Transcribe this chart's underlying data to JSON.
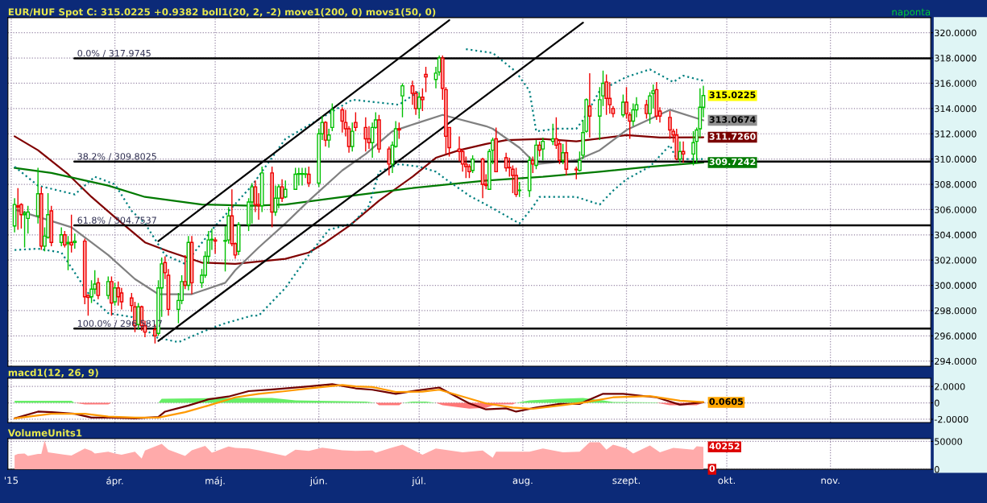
{
  "chart_data": [
    {
      "type": "candlestick",
      "title": "EUR/HUF Spot C: 315.0225 +0.9382 boll1(20, 2, -2) move1(200, 0) movs1(50, 0)",
      "subtitle": "naponta",
      "x": [
        "2015-03-02",
        "2015-03-03",
        "2015-03-04",
        "2015-03-05",
        "2015-03-06",
        "2015-03-09",
        "2015-03-10",
        "2015-03-11",
        "2015-03-12",
        "2015-03-13",
        "2015-03-16",
        "2015-03-17",
        "2015-03-18",
        "2015-03-19",
        "2015-03-20",
        "2015-03-23",
        "2015-03-24",
        "2015-03-25",
        "2015-03-26",
        "2015-03-27",
        "2015-03-30",
        "2015-03-31",
        "2015-04-01",
        "2015-04-02",
        "2015-04-03",
        "2015-04-06",
        "2015-04-07",
        "2015-04-08",
        "2015-04-09",
        "2015-04-10",
        "2015-04-13",
        "2015-04-14",
        "2015-04-15",
        "2015-04-16",
        "2015-04-17",
        "2015-04-20",
        "2015-04-21",
        "2015-04-22",
        "2015-04-23",
        "2015-04-24",
        "2015-04-27",
        "2015-04-28",
        "2015-04-29",
        "2015-04-30",
        "2015-05-01",
        "2015-05-04",
        "2015-05-05",
        "2015-05-06",
        "2015-05-07",
        "2015-05-08",
        "2015-05-11",
        "2015-05-12",
        "2015-05-13",
        "2015-05-14",
        "2015-05-15",
        "2015-05-18",
        "2015-05-19",
        "2015-05-20",
        "2015-05-21",
        "2015-05-22",
        "2015-05-25",
        "2015-05-26",
        "2015-05-27",
        "2015-05-28",
        "2015-05-29",
        "2015-06-01",
        "2015-06-02",
        "2015-06-03",
        "2015-06-04",
        "2015-06-05",
        "2015-06-08",
        "2015-06-09",
        "2015-06-10",
        "2015-06-11",
        "2015-06-12",
        "2015-06-15",
        "2015-06-16",
        "2015-06-17",
        "2015-06-18",
        "2015-06-19",
        "2015-06-22",
        "2015-06-23",
        "2015-06-24",
        "2015-06-25",
        "2015-06-26",
        "2015-06-29",
        "2015-06-30",
        "2015-07-01",
        "2015-07-02",
        "2015-07-03",
        "2015-07-06",
        "2015-07-07",
        "2015-07-08",
        "2015-07-09",
        "2015-07-10",
        "2015-07-13",
        "2015-07-14",
        "2015-07-15",
        "2015-07-16",
        "2015-07-17",
        "2015-07-20",
        "2015-07-21",
        "2015-07-22",
        "2015-07-23",
        "2015-07-24",
        "2015-07-27",
        "2015-07-28",
        "2015-07-29",
        "2015-07-30",
        "2015-07-31",
        "2015-08-03",
        "2015-08-04",
        "2015-08-05",
        "2015-08-06",
        "2015-08-07",
        "2015-08-10",
        "2015-08-11",
        "2015-08-12",
        "2015-08-13",
        "2015-08-14",
        "2015-08-17",
        "2015-08-18",
        "2015-08-19",
        "2015-08-20",
        "2015-08-21",
        "2015-08-24",
        "2015-08-25",
        "2015-08-26",
        "2015-08-27",
        "2015-08-28",
        "2015-08-31",
        "2015-09-01",
        "2015-09-02",
        "2015-09-03",
        "2015-09-04",
        "2015-09-07",
        "2015-09-08",
        "2015-09-09",
        "2015-09-10",
        "2015-09-11",
        "2015-09-14",
        "2015-09-15",
        "2015-09-16",
        "2015-09-17",
        "2015-09-18",
        "2015-09-21",
        "2015-09-22",
        "2015-09-23",
        "2015-09-24"
      ],
      "ohlc": [
        [
          304.7,
          306.9,
          304.2,
          306.4
        ],
        [
          306.3,
          307.7,
          304.4,
          306.2
        ],
        [
          306.4,
          306.5,
          304.5,
          305.6
        ],
        [
          305.6,
          305.9,
          303.0,
          305.7
        ],
        [
          305.3,
          306.3,
          304.1,
          305.8
        ],
        [
          305.5,
          309.3,
          304.9,
          307.25
        ],
        [
          307.25,
          307.8,
          302.8,
          303.1
        ],
        [
          303.1,
          304.6,
          302.7,
          303.9
        ],
        [
          303.8,
          307.3,
          303.7,
          305.6
        ],
        [
          305.9,
          306.3,
          303.1,
          303.4
        ],
        [
          303.4,
          304.6,
          303.1,
          304.0
        ],
        [
          304.0,
          304.3,
          303.0,
          303.2
        ],
        [
          303.3,
          303.9,
          301.2,
          303.4
        ],
        [
          303.4,
          305.6,
          302.6,
          303.2
        ],
        [
          303.4,
          304.1,
          302.9,
          303.5
        ],
        [
          303.5,
          303.7,
          298.5,
          299.1
        ],
        [
          299.2,
          299.3,
          297.6,
          299.05
        ],
        [
          299.1,
          300.4,
          298.6,
          299.7
        ],
        [
          299.7,
          301.2,
          299.3,
          300.1
        ],
        [
          300.2,
          300.6,
          298.9,
          299.2
        ],
        [
          299.2,
          300.7,
          298.9,
          300.3
        ],
        [
          300.3,
          300.7,
          297.6,
          298.6
        ],
        [
          298.7,
          300.2,
          298.4,
          299.8
        ],
        [
          299.8,
          300.3,
          298.4,
          299.1
        ],
        [
          299.4,
          299.8,
          298.1,
          298.7
        ],
        [
          299.0,
          299.4,
          297.9,
          298.4
        ],
        [
          298.3,
          298.7,
          296.3,
          296.8
        ],
        [
          296.9,
          298.6,
          296.5,
          298.3
        ],
        [
          298.3,
          298.4,
          296.4,
          296.8
        ],
        [
          296.8,
          297.2,
          295.9,
          296.3
        ],
        [
          296.5,
          296.9,
          295.4,
          296.0
        ],
        [
          296.2,
          300.4,
          296.0,
          299.8
        ],
        [
          299.8,
          302.2,
          297.5,
          301.7
        ],
        [
          301.8,
          302.3,
          300.5,
          301.0
        ],
        [
          300.8,
          301.3,
          297.6,
          298.1
        ],
        [
          298.1,
          299.4,
          297.0,
          298.8
        ],
        [
          298.8,
          300.8,
          298.5,
          300.3
        ],
        [
          300.3,
          302.4,
          299.7,
          300.0
        ],
        [
          300.0,
          303.9,
          299.6,
          303.4
        ],
        [
          303.4,
          303.9,
          299.3,
          300.2
        ],
        [
          300.2,
          301.3,
          299.8,
          300.8
        ],
        [
          300.8,
          302.7,
          300.6,
          302.3
        ],
        [
          302.3,
          304.3,
          301.7,
          303.6
        ],
        [
          303.6,
          304.5,
          302.8,
          303.65
        ],
        [
          303.6,
          303.8,
          302.5,
          303.5
        ],
        [
          303.5,
          304.7,
          301.1,
          303.55
        ],
        [
          303.6,
          306.2,
          303.3,
          305.5
        ],
        [
          305.5,
          307.6,
          303.1,
          303.3
        ],
        [
          303.3,
          303.4,
          302.1,
          302.4
        ],
        [
          302.7,
          305.0,
          302.4,
          304.8
        ],
        [
          304.8,
          306.9,
          304.3,
          306.6
        ],
        [
          306.6,
          308.1,
          304.9,
          307.8
        ],
        [
          307.8,
          308.3,
          305.8,
          306.4
        ],
        [
          306.4,
          307.3,
          305.2,
          306.3
        ],
        [
          306.3,
          309.4,
          305.8,
          308.9
        ],
        [
          308.9,
          309.4,
          304.6,
          305.8
        ],
        [
          305.8,
          307.9,
          305.5,
          306.9
        ],
        [
          306.9,
          308.0,
          306.1,
          307.8
        ],
        [
          307.8,
          308.4,
          306.6,
          306.9
        ],
        [
          307.0,
          308.3,
          306.9,
          307.6
        ],
        [
          307.6,
          309.3,
          307.6,
          308.8
        ],
        [
          308.8,
          309.3,
          307.9,
          308.85
        ],
        [
          308.8,
          309.3,
          307.9,
          308.85
        ],
        [
          308.8,
          309.3,
          308.5,
          308.8
        ],
        [
          308.8,
          309.4,
          307.8,
          308.1
        ],
        [
          308.1,
          312.4,
          307.8,
          312.0
        ],
        [
          312.0,
          313.4,
          311.5,
          312.9
        ],
        [
          312.9,
          313.0,
          311.0,
          311.5
        ],
        [
          311.5,
          312.4,
          310.9,
          311.9
        ],
        [
          312.5,
          314.4,
          312.2,
          313.9
        ],
        [
          313.9,
          314.1,
          312.1,
          313.0
        ],
        [
          312.9,
          313.9,
          311.8,
          312.4
        ],
        [
          312.4,
          312.6,
          310.5,
          311.0
        ],
        [
          311.0,
          312.9,
          310.6,
          312.2
        ],
        [
          312.9,
          313.7,
          312.2,
          312.5
        ],
        [
          312.5,
          313.3,
          310.6,
          311.6
        ],
        [
          311.6,
          312.6,
          310.8,
          311.3
        ],
        [
          311.3,
          312.9,
          310.1,
          312.5
        ],
        [
          312.5,
          313.7,
          312.4,
          313.1
        ],
        [
          313.1,
          313.5,
          310.5,
          310.8
        ],
        [
          310.8,
          311.0,
          308.7,
          309.6
        ],
        [
          309.6,
          311.4,
          308.9,
          311.1
        ],
        [
          311.0,
          313.0,
          310.9,
          312.4
        ],
        [
          312.4,
          312.9,
          311.6,
          312.3
        ],
        [
          315.0,
          316.0,
          313.3,
          315.8
        ],
        [
          315.8,
          316.2,
          314.3,
          315.2
        ],
        [
          315.2,
          315.4,
          313.5,
          314.0
        ],
        [
          314.0,
          315.3,
          313.2,
          314.9
        ],
        [
          314.9,
          315.6,
          313.8,
          314.7
        ],
        [
          316.7,
          317.3,
          315.3,
          316.5
        ],
        [
          316.3,
          317.3,
          315.6,
          316.8
        ],
        [
          316.9,
          318.2,
          316.6,
          318.0
        ],
        [
          318.0,
          318.2,
          314.7,
          315.6
        ],
        [
          315.5,
          315.7,
          310.4,
          311.8
        ],
        [
          312.5,
          312.5,
          310.2,
          310.9
        ],
        [
          310.8,
          311.8,
          309.8,
          310.6
        ],
        [
          310.6,
          310.8,
          309.0,
          309.6
        ],
        [
          309.6,
          310.2,
          308.5,
          309.4
        ],
        [
          309.4,
          309.6,
          308.5,
          309.0
        ],
        [
          309.1,
          310.3,
          308.9,
          310.0
        ],
        [
          310.0,
          310.1,
          306.9,
          308.0
        ],
        [
          308.0,
          308.8,
          307.6,
          307.9
        ],
        [
          307.6,
          310.8,
          307.6,
          310.6
        ],
        [
          310.7,
          311.7,
          309.6,
          311.5
        ],
        [
          311.6,
          312.5,
          309.0,
          309.0
        ],
        [
          310.1,
          310.5,
          309.0,
          309.3
        ],
        [
          309.35,
          310.1,
          308.6,
          309.3
        ],
        [
          309.2,
          309.5,
          307.3,
          308.7
        ],
        [
          308.7,
          309.3,
          307.0,
          307.2
        ],
        [
          307.5,
          308.2,
          307.0,
          307.55
        ],
        [
          307.5,
          310.2,
          307.0,
          309.9
        ],
        [
          309.9,
          310.2,
          308.9,
          309.6
        ],
        [
          309.5,
          311.5,
          309.2,
          311.1
        ],
        [
          311.1,
          311.4,
          310.2,
          310.7
        ],
        [
          310.8,
          311.7,
          309.9,
          311.4
        ],
        [
          311.4,
          312.8,
          311.1,
          311.6
        ],
        [
          311.6,
          313.3,
          310.8,
          311.1
        ],
        [
          311.2,
          311.5,
          309.6,
          309.9
        ],
        [
          309.9,
          311.2,
          309.6,
          310.5
        ],
        [
          310.5,
          311.4,
          308.7,
          309.2
        ],
        [
          309.2,
          309.4,
          308.4,
          309.15
        ],
        [
          309.1,
          310.6,
          309.0,
          309.9
        ],
        [
          310.3,
          313.1,
          310.0,
          312.1
        ],
        [
          312.2,
          314.8,
          312.1,
          314.7
        ],
        [
          314.2,
          316.8,
          311.7,
          313.4
        ],
        [
          313.4,
          315.7,
          311.5,
          314.7
        ],
        [
          315.0,
          317.0,
          314.2,
          316.0
        ],
        [
          316.1,
          316.7,
          313.5,
          314.8
        ],
        [
          314.8,
          316.1,
          313.6,
          314.3
        ],
        [
          314.0,
          314.2,
          313.3,
          313.6
        ],
        [
          313.5,
          315.1,
          313.3,
          314.5
        ],
        [
          314.5,
          315.7,
          313.2,
          313.6
        ],
        [
          313.5,
          313.7,
          311.6,
          313.0
        ],
        [
          313.0,
          314.4,
          312.6,
          313.9
        ],
        [
          313.9,
          314.9,
          313.3,
          314.3
        ],
        [
          314.3,
          314.7,
          313.2,
          313.6
        ],
        [
          313.6,
          315.3,
          312.8,
          315.0
        ],
        [
          315.2,
          315.9,
          314.0,
          315.4
        ],
        [
          315.5,
          316.1,
          313.1,
          313.4
        ],
        [
          313.8,
          314.1,
          312.9,
          313.4
        ],
        [
          313.3,
          313.8,
          311.6,
          312.3
        ],
        [
          312.2,
          312.4,
          311.3,
          311.9
        ],
        [
          311.9,
          312.4,
          309.9,
          310.0
        ],
        [
          310.0,
          311.4,
          309.7,
          310.6
        ],
        [
          310.6,
          311.4,
          309.7,
          310.4
        ],
        [
          310.4,
          312.2,
          309.5,
          311.3
        ],
        [
          311.4,
          312.5,
          309.7,
          312.3
        ],
        [
          312.4,
          315.6,
          311.7,
          314.1
        ],
        [
          314.1,
          315.8,
          313.3,
          315.0225
        ]
      ],
      "series": [
        {
          "type": "line",
          "color": "#800000",
          "line_style": "solid",
          "x": [
            "2015-03-02",
            "2015-03-09",
            "2015-03-18",
            "2015-03-25",
            "2015-04-01",
            "2015-04-10",
            "2015-04-17",
            "2015-04-27",
            "2015-05-07",
            "2015-05-22",
            "2015-05-29",
            "2015-06-03",
            "2015-06-10",
            "2015-06-19",
            "2015-06-29",
            "2015-07-06",
            "2015-07-13",
            "2015-07-21",
            "2015-07-27",
            "2015-08-07",
            "2015-08-17",
            "2015-09-01",
            "2015-09-11",
            "2015-09-24"
          ],
          "values": [
            311.8,
            310.7,
            308.8,
            307.0,
            305.4,
            303.4,
            302.7,
            301.8,
            301.7,
            302.1,
            302.6,
            303.4,
            304.7,
            306.7,
            308.6,
            310.1,
            310.7,
            311.2,
            311.5,
            311.6,
            311.4,
            311.9,
            311.7,
            311.726
          ]
        },
        {
          "type": "line",
          "color": "#007a00",
          "line_style": "solid",
          "x": [
            "2015-03-02",
            "2015-03-13",
            "2015-03-30",
            "2015-04-10",
            "2015-04-27",
            "2015-05-12",
            "2015-05-22",
            "2015-06-11",
            "2015-06-29",
            "2015-07-21",
            "2015-08-07",
            "2015-08-24",
            "2015-09-08",
            "2015-09-24"
          ],
          "values": [
            309.3,
            308.9,
            307.9,
            307.0,
            306.4,
            306.3,
            306.4,
            307.1,
            307.7,
            308.3,
            308.6,
            309.0,
            309.4,
            309.7242
          ]
        },
        {
          "type": "line",
          "color": "#808080",
          "line_style": "solid",
          "x": [
            "2015-03-02",
            "2015-03-19",
            "2015-03-30",
            "2015-04-07",
            "2015-04-14",
            "2015-04-24",
            "2015-05-04",
            "2015-05-07",
            "2015-05-14",
            "2015-05-22",
            "2015-05-29",
            "2015-06-08",
            "2015-06-15",
            "2015-06-23",
            "2015-07-01",
            "2015-07-08",
            "2015-07-21",
            "2015-07-23",
            "2015-07-31",
            "2015-08-05",
            "2015-08-17",
            "2015-08-24",
            "2015-09-01",
            "2015-09-14",
            "2015-09-24"
          ],
          "values": [
            306.0,
            304.6,
            302.4,
            300.5,
            299.3,
            299.3,
            300.2,
            301.2,
            303.0,
            304.9,
            306.7,
            309.1,
            310.4,
            312.2,
            312.9,
            313.5,
            312.6,
            312.4,
            310.9,
            309.6,
            309.9,
            310.7,
            312.3,
            313.9,
            313.0674
          ]
        },
        {
          "type": "line",
          "color": "#008080",
          "line_style": "dotted",
          "x": [
            "2015-03-02",
            "2015-03-09",
            "2015-03-20",
            "2015-03-26",
            "2015-04-01",
            "2015-04-06",
            "2015-04-10",
            "2015-04-16",
            "2015-04-22",
            "2015-05-01",
            "2015-05-12",
            "2015-05-22",
            "2015-06-02",
            "2015-06-11",
            "2015-06-25",
            "2015-07-01",
            "2015-07-08",
            "2015-07-15",
            "2015-07-23",
            "2015-07-30",
            "2015-08-03",
            "2015-08-05",
            "2015-08-11",
            "2015-08-17",
            "2015-08-19",
            "2015-08-24",
            "2015-09-01",
            "2015-09-08",
            "2015-09-15",
            "2015-09-18",
            "2015-09-24"
          ],
          "values": [
            309.4,
            307.9,
            307.2,
            308.6,
            308.0,
            305.9,
            304.9,
            302.4,
            301.7,
            304.7,
            307.9,
            311.6,
            313.3,
            314.7,
            314.3,
            315.4,
            null,
            318.7,
            318.4,
            316.9,
            315.4,
            312.2,
            312.4,
            312.4,
            313.1,
            315.4,
            316.5,
            317.1,
            316.1,
            316.6,
            316.2
          ]
        },
        {
          "type": "line",
          "color": "#008080",
          "line_style": "dotted",
          "x": [
            "2015-03-02",
            "2015-03-09",
            "2015-03-16",
            "2015-03-20",
            "2015-03-25",
            "2015-03-30",
            "2015-04-06",
            "2015-04-13",
            "2015-04-20",
            "2015-04-27",
            "2015-05-04",
            "2015-05-12",
            "2015-05-14",
            "2015-05-22",
            "2015-05-29",
            "2015-06-04",
            "2015-06-11",
            "2015-06-16",
            "2015-06-19",
            "2015-06-25",
            "2015-07-01",
            "2015-07-06",
            "2015-07-09",
            "2015-07-16",
            "2015-07-21",
            "2015-07-31",
            "2015-08-04",
            "2015-08-06",
            "2015-08-17",
            "2015-08-24",
            "2015-08-28",
            "2015-09-01",
            "2015-09-08",
            "2015-09-14",
            "2015-09-16",
            "2015-09-24"
          ],
          "values": [
            302.8,
            302.9,
            302.6,
            301.0,
            299.0,
            297.8,
            297.5,
            295.9,
            295.5,
            296.3,
            297.0,
            297.6,
            297.6,
            299.8,
            302.4,
            304.4,
            304.9,
            306.3,
            309.0,
            309.6,
            309.4,
            309.0,
            308.4,
            307.1,
            306.4,
            304.9,
            306.2,
            307.0,
            307.0,
            306.4,
            307.5,
            308.4,
            309.4,
            311.1,
            310.0,
            310.0
          ]
        },
        {
          "type": "line",
          "color": "#000000",
          "line_style": "solid",
          "x": [
            "2015-04-14",
            "2015-07-10"
          ],
          "values": [
            303.5,
            321.0
          ]
        },
        {
          "type": "line",
          "color": "#000000",
          "line_style": "solid",
          "x": [
            "2015-04-14",
            "2015-08-19"
          ],
          "values": [
            295.6,
            320.8
          ]
        }
      ],
      "ref_lines": [
        {
          "axis": "y",
          "value": 317.9745,
          "label": "0.0% / 317.9745",
          "color": "#000000"
        },
        {
          "axis": "y",
          "value": 309.8025,
          "label": "38.2% / 309.8025",
          "color": "#000000"
        },
        {
          "axis": "y",
          "value": 304.7537,
          "label": "61.8% / 304.7537",
          "color": "#000000"
        },
        {
          "axis": "y",
          "value": 296.5817,
          "label": "100.0% / 296.5817",
          "color": "#000000"
        }
      ],
      "annotations": [
        {
          "text": "315.0225",
          "x": "2015-09-24",
          "y": 315.0225
        },
        {
          "text": "313.0674",
          "x": "2015-09-24",
          "y": 313.0674
        },
        {
          "text": "311.7260",
          "x": "2015-09-24",
          "y": 311.726
        },
        {
          "text": "309.7242",
          "x": "2015-09-24",
          "y": 309.7242
        }
      ],
      "xlim": [
        "2015-02-28",
        "2015-12-01"
      ],
      "xticks": [
        {
          "value": "2015-03-01",
          "label": null
        },
        {
          "value": "2015-04-01",
          "label": null
        },
        {
          "value": "2015-05-01",
          "label": null
        },
        {
          "value": "2015-06-01",
          "label": null
        },
        {
          "value": "2015-07-01",
          "label": null
        },
        {
          "value": "2015-08-01",
          "label": null
        },
        {
          "value": "2015-09-01",
          "label": null
        },
        {
          "value": "2015-10-01",
          "label": null
        },
        {
          "value": "2015-11-01",
          "label": null
        }
      ],
      "ylim": [
        293.6,
        321.2
      ],
      "yticks": [
        {
          "value": 294,
          "label": "294.0000"
        },
        {
          "value": 296,
          "label": "296.0000"
        },
        {
          "value": 298,
          "label": "298.0000"
        },
        {
          "value": 300,
          "label": "300.0000"
        },
        {
          "value": 302,
          "label": "302.0000"
        },
        {
          "value": 304,
          "label": "304.0000"
        },
        {
          "value": 306,
          "label": "306.0000"
        },
        {
          "value": 308,
          "label": "308.0000"
        },
        {
          "value": 310,
          "label": "310.0000"
        },
        {
          "value": 312,
          "label": "312.0000"
        },
        {
          "value": 314,
          "label": "314.0000"
        },
        {
          "value": 316,
          "label": "316.0000"
        },
        {
          "value": 318,
          "label": "318.0000"
        },
        {
          "value": 320,
          "label": "320.0000"
        }
      ],
      "grid": true,
      "tick_labels": "y"
    },
    {
      "type": "line",
      "title": "macd1(12, 26, 9)",
      "xticks": [
        {
          "value": "2015-03-01",
          "label": null
        },
        {
          "value": "2015-04-01",
          "label": null
        },
        {
          "value": "2015-05-01",
          "label": null
        },
        {
          "value": "2015-06-01",
          "label": null
        },
        {
          "value": "2015-07-01",
          "label": null
        },
        {
          "value": "2015-08-01",
          "label": null
        },
        {
          "value": "2015-09-01",
          "label": null
        },
        {
          "value": "2015-10-01",
          "label": null
        },
        {
          "value": "2015-11-01",
          "label": null
        }
      ],
      "series": [
        {
          "type": "area",
          "color": "#66ee66",
          "x": [
            "2015-03-02",
            "2015-03-19",
            "2015-03-20",
            "2015-04-14",
            "2015-04-15",
            "2015-05-04",
            "2015-05-18",
            "2015-05-25",
            "2015-06-15",
            "2015-06-18",
            "2015-06-26",
            "2015-06-29",
            "2015-07-03",
            "2015-07-06",
            "2015-07-30",
            "2015-08-03",
            "2015-08-12",
            "2015-08-19",
            "2015-08-25",
            "2015-08-28",
            "2015-09-10",
            "2015-09-11",
            "2015-09-24"
          ],
          "values": [
            0.25,
            0.25,
            0,
            0,
            0.5,
            0.6,
            0.6,
            0.3,
            0.15,
            0,
            0,
            0.15,
            0.15,
            0,
            0,
            0.3,
            0.5,
            0.6,
            0.3,
            0.1,
            0.05,
            0,
            0
          ]
        },
        {
          "type": "area",
          "color": "#ff7777",
          "x": [
            "2015-03-02",
            "2015-03-20",
            "2015-03-23",
            "2015-03-30",
            "2015-03-31",
            "2015-06-18",
            "2015-06-19",
            "2015-06-25",
            "2015-06-26",
            "2015-07-06",
            "2015-07-08",
            "2015-07-16",
            "2015-07-21",
            "2015-07-24",
            "2015-07-29",
            "2015-07-30",
            "2015-09-10",
            "2015-09-14",
            "2015-09-22",
            "2015-09-24"
          ],
          "values": [
            0,
            0,
            -0.2,
            -0.2,
            0,
            0,
            -0.3,
            -0.3,
            0,
            0,
            -0.3,
            -0.7,
            -0.6,
            -0.2,
            -0.2,
            0,
            0,
            -0.3,
            -0.3,
            0
          ]
        },
        {
          "type": "line",
          "color": "#700000",
          "x": [
            "2015-03-02",
            "2015-03-09",
            "2015-03-13",
            "2015-03-20",
            "2015-03-25",
            "2015-03-31",
            "2015-04-07",
            "2015-04-14",
            "2015-04-16",
            "2015-04-23",
            "2015-04-29",
            "2015-05-05",
            "2015-05-11",
            "2015-05-19",
            "2015-05-29",
            "2015-06-05",
            "2015-06-12",
            "2015-06-17",
            "2015-06-24",
            "2015-06-30",
            "2015-07-07",
            "2015-07-09",
            "2015-07-16",
            "2015-07-21",
            "2015-07-27",
            "2015-07-30",
            "2015-08-05",
            "2015-08-12",
            "2015-08-18",
            "2015-08-25",
            "2015-08-31",
            "2015-09-10",
            "2015-09-17",
            "2015-09-24"
          ],
          "values": [
            -1.9,
            -1.07,
            -1.13,
            -1.33,
            -1.8,
            -1.8,
            -1.9,
            -1.73,
            -1.07,
            -0.33,
            0.43,
            0.77,
            1.43,
            1.67,
            2.0,
            2.27,
            1.77,
            1.6,
            1.1,
            1.5,
            1.87,
            1.43,
            -0.07,
            -0.8,
            -0.67,
            -1.07,
            -0.57,
            -0.13,
            -0.13,
            1.1,
            1.1,
            0.67,
            -0.23,
            0.0605
          ]
        },
        {
          "type": "line",
          "color": "#ff9900",
          "x": [
            "2015-03-02",
            "2015-03-13",
            "2015-03-23",
            "2015-03-30",
            "2015-04-07",
            "2015-04-14",
            "2015-04-22",
            "2015-04-29",
            "2015-05-07",
            "2015-05-14",
            "2015-05-22",
            "2015-05-29",
            "2015-06-08",
            "2015-06-12",
            "2015-06-17",
            "2015-06-24",
            "2015-07-02",
            "2015-07-07",
            "2015-07-14",
            "2015-07-21",
            "2015-07-29",
            "2015-08-04",
            "2015-08-13",
            "2015-08-20",
            "2015-08-28",
            "2015-09-08",
            "2015-09-17",
            "2015-09-24"
          ],
          "values": [
            -1.9,
            -1.33,
            -1.33,
            -1.67,
            -1.8,
            -1.8,
            -1.13,
            -0.33,
            0.67,
            1.1,
            1.43,
            1.77,
            2.17,
            2.0,
            1.93,
            1.33,
            1.37,
            1.6,
            0.77,
            -0.07,
            -0.57,
            -0.73,
            -0.27,
            0.1,
            0.67,
            0.83,
            0.27,
            0.1
          ]
        }
      ],
      "annotations": [
        {
          "text": "0.0605",
          "x": "2015-09-24",
          "y": 0.0605
        }
      ],
      "xlim": [
        "2015-02-28",
        "2015-12-01"
      ],
      "ylim": [
        -2.4,
        3.0
      ],
      "yticks": [
        {
          "value": -2,
          "label": "-2.0000"
        },
        0,
        {
          "value": 2,
          "label": "2.0000"
        }
      ],
      "grid": true,
      "tick_labels": "y"
    },
    {
      "type": "area",
      "title": "VolumeUnits1",
      "series": [
        {
          "type": "area",
          "color": "#ffaaaa",
          "x": [
            "2015-03-02",
            "2015-03-03",
            "2015-03-05",
            "2015-03-06",
            "2015-03-09",
            "2015-03-10",
            "2015-03-11",
            "2015-03-12",
            "2015-03-17",
            "2015-03-19",
            "2015-03-23",
            "2015-03-25",
            "2015-03-26",
            "2015-03-30",
            "2015-04-01",
            "2015-04-03",
            "2015-04-07",
            "2015-04-09",
            "2015-04-10",
            "2015-04-15",
            "2015-04-17",
            "2015-04-22",
            "2015-04-24",
            "2015-04-28",
            "2015-04-30",
            "2015-05-05",
            "2015-05-07",
            "2015-05-11",
            "2015-05-14",
            "2015-05-22",
            "2015-05-25",
            "2015-05-29",
            "2015-06-02",
            "2015-06-08",
            "2015-06-12",
            "2015-06-17",
            "2015-06-18",
            "2015-06-22",
            "2015-06-26",
            "2015-07-02",
            "2015-07-06",
            "2015-07-14",
            "2015-07-20",
            "2015-07-23",
            "2015-07-24",
            "2015-08-03",
            "2015-08-07",
            "2015-08-13",
            "2015-08-18",
            "2015-08-21",
            "2015-08-24",
            "2015-08-26",
            "2015-08-28",
            "2015-09-01",
            "2015-09-03",
            "2015-09-08",
            "2015-09-11",
            "2015-09-15",
            "2015-09-21",
            "2015-09-22",
            "2015-09-24"
          ],
          "values": [
            25200,
            27500,
            28400,
            23900,
            27500,
            27500,
            52000,
            30600,
            26100,
            24800,
            37400,
            32900,
            28400,
            31500,
            28400,
            26100,
            31500,
            19400,
            33800,
            45500,
            35100,
            23900,
            34200,
            41900,
            29700,
            41000,
            38300,
            37400,
            34200,
            23900,
            35100,
            32900,
            38700,
            34200,
            32900,
            33800,
            29700,
            37400,
            44100,
            26100,
            37400,
            30600,
            33800,
            20700,
            31500,
            31500,
            37400,
            30600,
            31500,
            48600,
            48600,
            35100,
            44100,
            37400,
            28400,
            42800,
            30600,
            38300,
            35100,
            41400,
            40252
          ]
        }
      ],
      "annotations": [
        {
          "text": "40252",
          "x": "2015-09-24",
          "y": 40252
        },
        {
          "text": "0",
          "x": "2015-09-24",
          "y": 0
        }
      ],
      "xlim": [
        "2015-02-28",
        "2015-12-01"
      ],
      "xticks": [
        {
          "value": "2015-03-01",
          "label": "'15"
        },
        {
          "value": "2015-04-01",
          "label": "ápr."
        },
        {
          "value": "2015-05-01",
          "label": "máj."
        },
        {
          "value": "2015-06-01",
          "label": "jún."
        },
        {
          "value": "2015-07-01",
          "label": "júl."
        },
        {
          "value": "2015-08-01",
          "label": "aug."
        },
        {
          "value": "2015-09-01",
          "label": "szept."
        },
        {
          "value": "2015-10-01",
          "label": "okt."
        },
        {
          "value": "2015-11-01",
          "label": "nov."
        }
      ],
      "ylim": [
        0,
        55000
      ],
      "yticks": [
        0,
        50000
      ],
      "grid": true
    }
  ]
}
